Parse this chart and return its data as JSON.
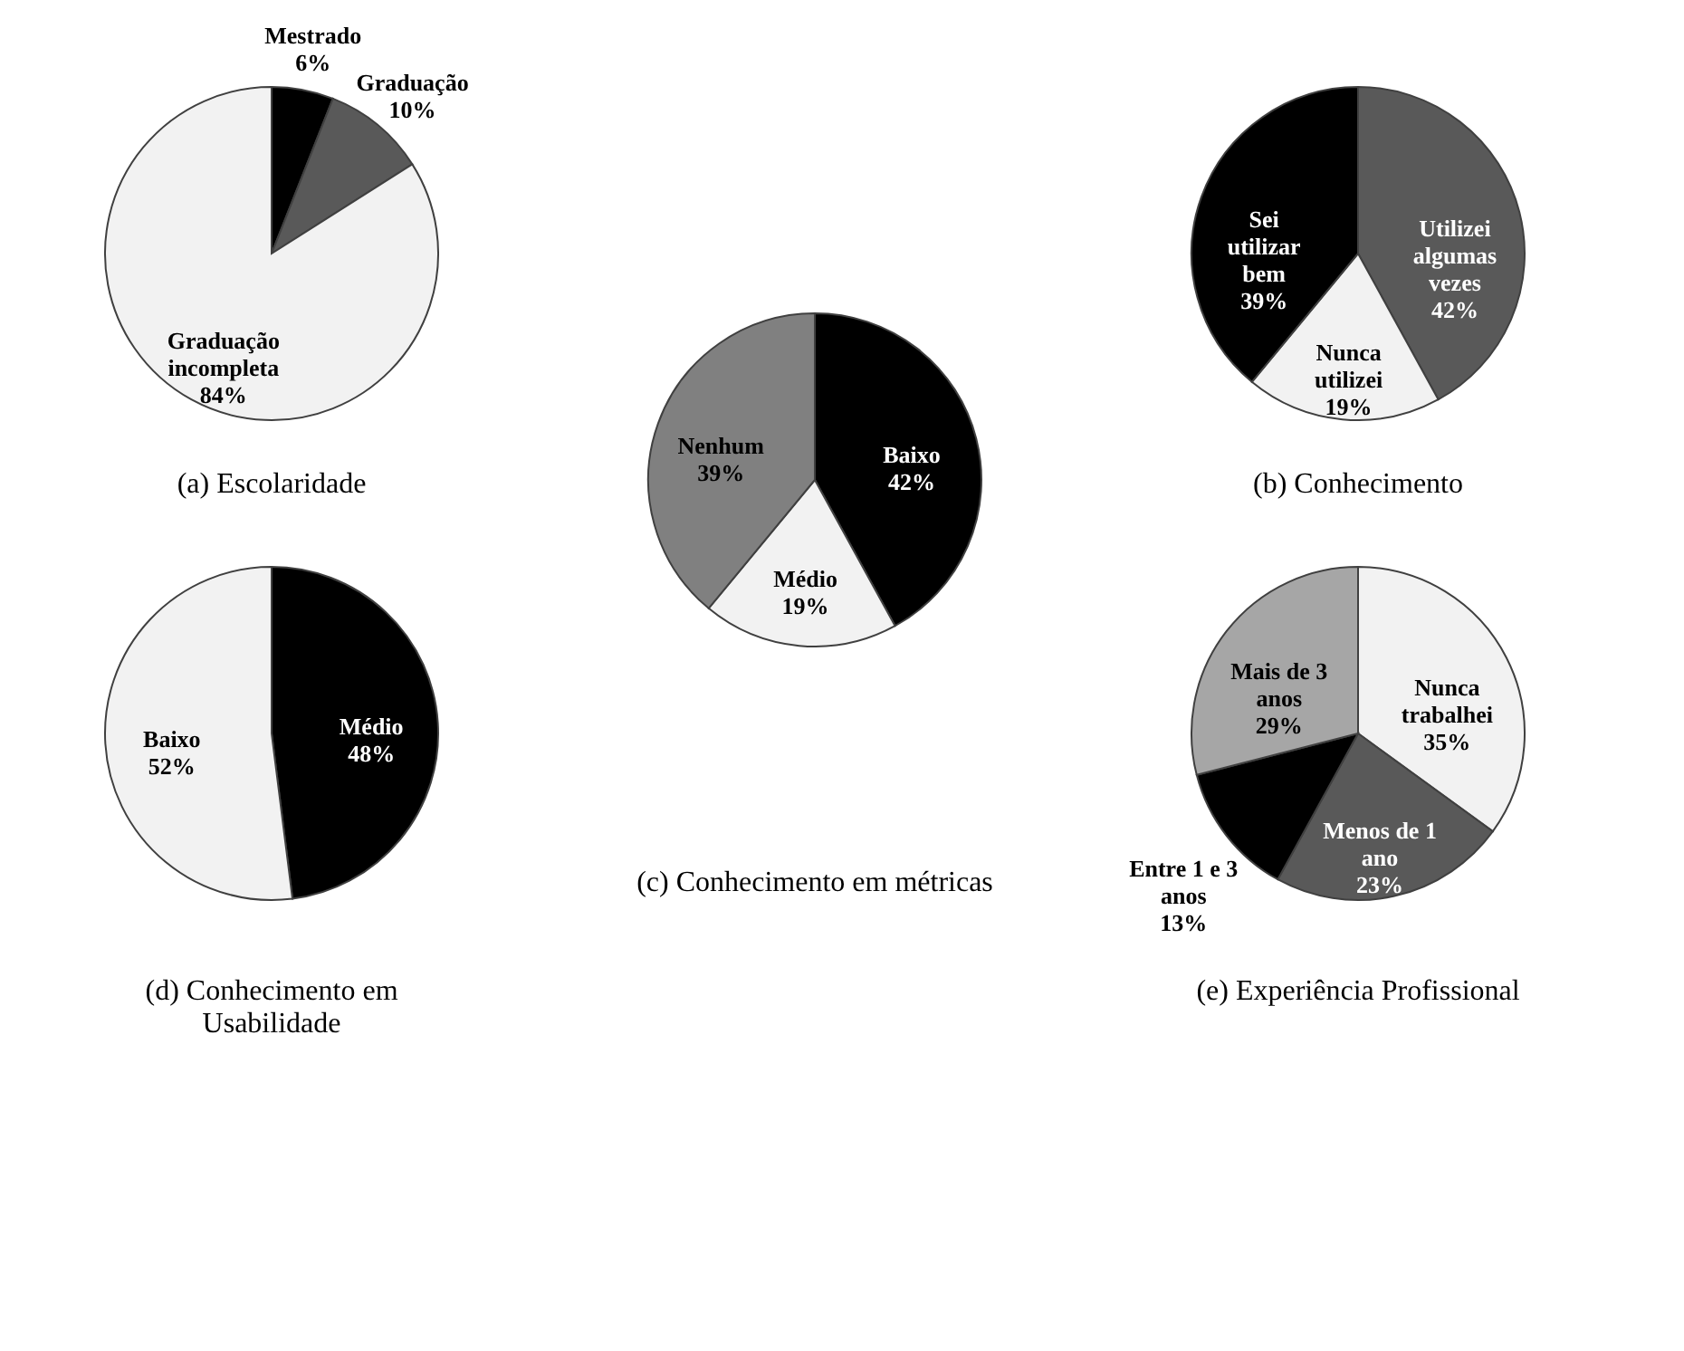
{
  "chart_data": [
    {
      "type": "pie",
      "title": "(a) Escolaridade",
      "categories": [
        "Mestrado",
        "Graduação",
        "Graduação incompleta"
      ],
      "values": [
        6,
        10,
        84
      ],
      "value_labels": [
        "6%",
        "10%",
        "84%"
      ],
      "colors": [
        "#000000",
        "#595959",
        "#f2f2f2"
      ]
    },
    {
      "type": "pie",
      "title": "(b) Conhecimento",
      "categories": [
        "Utilizei algumas vezes",
        "Nunca utilizei",
        "Sei utilizar bem"
      ],
      "values": [
        42,
        19,
        39
      ],
      "value_labels": [
        "42%",
        "19%",
        "39%"
      ],
      "colors": [
        "#595959",
        "#f2f2f2",
        "#000000"
      ]
    },
    {
      "type": "pie",
      "title": "(c) Conhecimento em métricas",
      "categories": [
        "Baixo",
        "Médio",
        "Nenhum"
      ],
      "values": [
        42,
        19,
        39
      ],
      "value_labels": [
        "42%",
        "19%",
        "39%"
      ],
      "colors": [
        "#000000",
        "#f2f2f2",
        "#808080"
      ]
    },
    {
      "type": "pie",
      "title": "(d) Conhecimento em Usabilidade",
      "categories": [
        "Médio",
        "Baixo"
      ],
      "values": [
        48,
        52
      ],
      "value_labels": [
        "48%",
        "52%"
      ],
      "colors": [
        "#000000",
        "#f2f2f2"
      ]
    },
    {
      "type": "pie",
      "title": "(e) Experiência Profissional",
      "categories": [
        "Nunca trabalhei",
        "Menos de 1 ano",
        "Entre 1 e 3 anos",
        "Mais de 3 anos"
      ],
      "values": [
        35,
        23,
        13,
        29
      ],
      "value_labels": [
        "35%",
        "23%",
        "13%",
        "29%"
      ],
      "colors": [
        "#f2f2f2",
        "#595959",
        "#000000",
        "#a6a6a6"
      ]
    }
  ]
}
